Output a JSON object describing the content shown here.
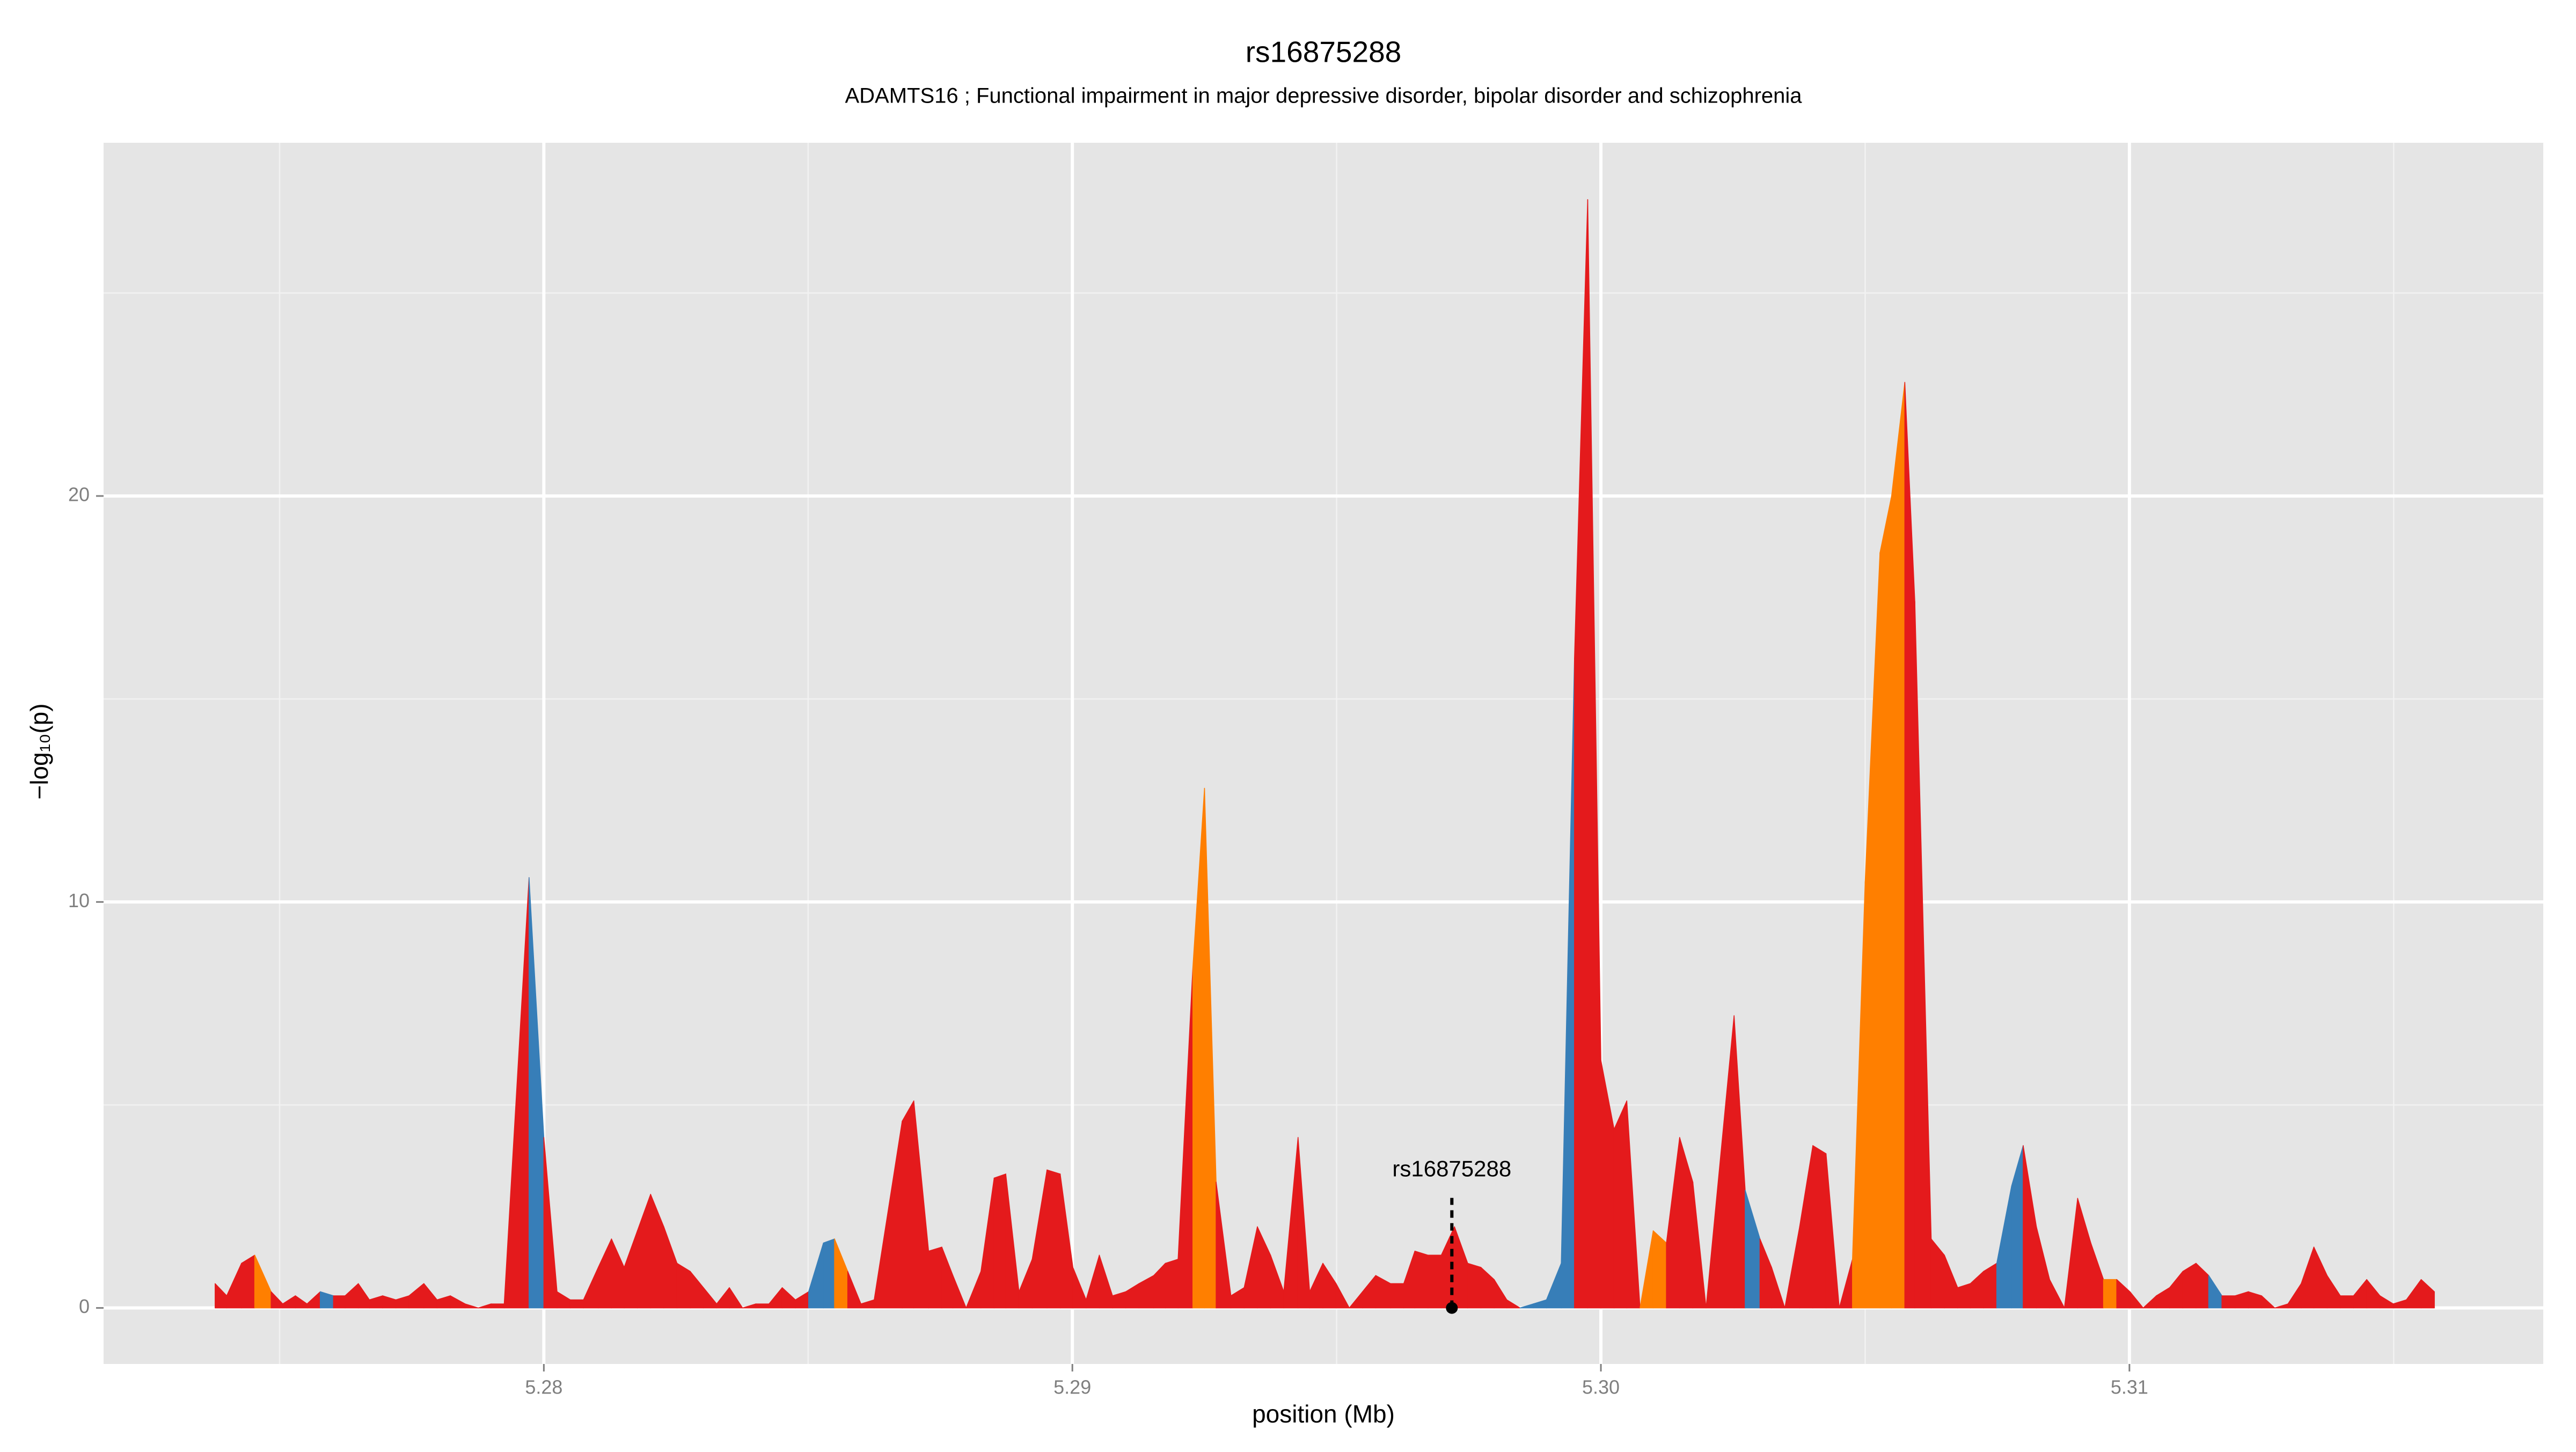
{
  "chart_data": {
    "type": "area",
    "title": "rs16875288",
    "subtitle": "ADAMTS16 ; Functional impairment in major depressive disorder, bipolar disorder and schizophrenia",
    "xlabel": "position (Mb)",
    "ylabel": "−log₁₀(p)",
    "xlim": [
      5.27167,
      5.31783
    ],
    "ylim": [
      -1.38,
      28.7
    ],
    "xticks": [
      5.28,
      5.29,
      {
        "value": 5.3,
        "label": "5.30"
      },
      5.31
    ],
    "yticks": [
      0,
      10,
      20
    ],
    "xminorticks": [
      5.275,
      5.285,
      5.295,
      5.305,
      5.315
    ],
    "yminorticks": [
      5,
      15,
      25
    ],
    "grid": true,
    "x": [
      5.27378,
      5.274,
      5.27428,
      5.27453,
      5.27484,
      5.27506,
      5.2753,
      5.27552,
      5.27577,
      5.27602,
      5.27624,
      5.27649,
      5.2767,
      5.27695,
      5.2772,
      5.27745,
      5.27773,
      5.27798,
      5.27823,
      5.27851,
      5.27876,
      5.279,
      5.27925,
      5.27972,
      5.28,
      5.28025,
      5.2805,
      5.28075,
      5.28103,
      5.28128,
      5.28152,
      5.28177,
      5.28202,
      5.28227,
      5.28252,
      5.28277,
      5.28302,
      5.28327,
      5.28351,
      5.28376,
      5.28401,
      5.28426,
      5.28451,
      5.28476,
      5.28501,
      5.28529,
      5.2855,
      5.28575,
      5.286,
      5.28625,
      5.28678,
      5.287,
      5.28728,
      5.28753,
      5.28774,
      5.28799,
      5.28827,
      5.28852,
      5.28874,
      5.28899,
      5.28924,
      5.28952,
      5.28977,
      5.29001,
      5.29026,
      5.29051,
      5.29076,
      5.29101,
      5.29126,
      5.29154,
      5.29176,
      5.292,
      5.29228,
      5.2925,
      5.29272,
      5.293,
      5.29325,
      5.2935,
      5.29375,
      5.294,
      5.29427,
      5.29449,
      5.29474,
      5.29499,
      5.29524,
      5.29549,
      5.29574,
      5.29602,
      5.29627,
      5.29648,
      5.29673,
      5.29698,
      5.29723,
      5.29748,
      5.29773,
      5.29798,
      5.29822,
      5.29847,
      5.29872,
      5.29897,
      5.29925,
      5.2995,
      5.29975,
      5.3,
      5.30025,
      5.30049,
      5.30074,
      5.30099,
      5.30124,
      5.30149,
      5.30174,
      5.30199,
      5.30252,
      5.30273,
      5.30301,
      5.30323,
      5.30348,
      5.30376,
      5.30401,
      5.30426,
      5.30451,
      5.30476,
      5.305,
      5.30528,
      5.3055,
      5.30575,
      5.30594,
      5.30625,
      5.3065,
      5.30675,
      5.30699,
      5.30724,
      5.30749,
      5.30777,
      5.30799,
      5.30824,
      5.30849,
      5.30877,
      5.30902,
      5.30927,
      5.30951,
      5.30976,
      5.31001,
      5.31026,
      5.31051,
      5.31076,
      5.31101,
      5.31126,
      5.3115,
      5.31175,
      5.312,
      5.31225,
      5.3125,
      5.31275,
      5.313,
      5.31325,
      5.31349,
      5.31374,
      5.31399,
      5.31424,
      5.31449,
      5.31474,
      5.31499,
      5.31524,
      5.31552,
      5.31577
    ],
    "series": [
      {
        "values": [
          0.6,
          0.3,
          1.1,
          1.3,
          0.4,
          0.1,
          0.3,
          0.1,
          0.4,
          0.3,
          0.3,
          0.6,
          0.2,
          0.3,
          0.2,
          0.3,
          0.6,
          0.2,
          0.3,
          0.1,
          0.0,
          0.1,
          0.1,
          10.6,
          4.2,
          0.4,
          0.2,
          0.2,
          1.0,
          1.7,
          1.0,
          1.9,
          2.8,
          2.0,
          1.1,
          0.9,
          0.5,
          0.1,
          0.5,
          0.0,
          0.1,
          0.1,
          0.5,
          0.2,
          0.4,
          1.6,
          1.7,
          0.9,
          0.1,
          0.2,
          4.6,
          5.1,
          1.4,
          1.5,
          0.8,
          0.0,
          0.9,
          3.2,
          3.3,
          0.4,
          1.2,
          3.4,
          3.3,
          1.0,
          0.2,
          1.3,
          0.3,
          0.4,
          0.6,
          0.8,
          1.1,
          1.2,
          8.4,
          12.8,
          3.1,
          0.3,
          0.5,
          2.0,
          1.3,
          0.4,
          4.2,
          0.4,
          1.1,
          0.6,
          0.0,
          0.4,
          0.8,
          0.6,
          0.6,
          1.4,
          1.3,
          1.3,
          2.0,
          1.1,
          1.0,
          0.7,
          0.2,
          0.0,
          0.1,
          0.2,
          1.1,
          16.0,
          27.3,
          6.1,
          4.4,
          5.1,
          0.0,
          1.9,
          1.6,
          4.2,
          3.1,
          0.0,
          7.2,
          2.9,
          1.7,
          1.0,
          0.0,
          2.0,
          4.0,
          3.8,
          0.0,
          1.2,
          10.5,
          18.6,
          20.0,
          22.8,
          17.4,
          1.7,
          1.3,
          0.5,
          0.6,
          0.9,
          1.1,
          3.0,
          4.0,
          2.0,
          0.7,
          0.0,
          2.7,
          1.6,
          0.7,
          0.7,
          0.4,
          0.0,
          0.3,
          0.5,
          0.9,
          1.1,
          0.8,
          0.3,
          0.3,
          0.4,
          0.3,
          0.0,
          0.1,
          0.6,
          1.5,
          0.8,
          0.3,
          0.3,
          0.7,
          0.3,
          0.1,
          0.2,
          0.7,
          0.4
        ],
        "colors": [
          "#e41a1c",
          "#e41a1c",
          "#e41a1c",
          "#e41a1c",
          "#ff7f00",
          "#e41a1c",
          "#e41a1c",
          "#e41a1c",
          "#e41a1c",
          "#377eb8",
          "#e41a1c",
          "#e41a1c",
          "#e41a1c",
          "#e41a1c",
          "#e41a1c",
          "#e41a1c",
          "#e41a1c",
          "#e41a1c",
          "#e41a1c",
          "#e41a1c",
          "#e41a1c",
          "#e41a1c",
          "#e41a1c",
          "#e41a1c",
          "#377eb8",
          "#e41a1c",
          "#e41a1c",
          "#e41a1c",
          "#e41a1c",
          "#e41a1c",
          "#e41a1c",
          "#e41a1c",
          "#e41a1c",
          "#e41a1c",
          "#e41a1c",
          "#e41a1c",
          "#e41a1c",
          "#e41a1c",
          "#e41a1c",
          "#e41a1c",
          "#e41a1c",
          "#e41a1c",
          "#e41a1c",
          "#e41a1c",
          "#e41a1c",
          "#377eb8",
          "#377eb8",
          "#ff7f00",
          "#e41a1c",
          "#e41a1c",
          "#e41a1c",
          "#e41a1c",
          "#e41a1c",
          "#e41a1c",
          "#e41a1c",
          "#e41a1c",
          "#e41a1c",
          "#e41a1c",
          "#e41a1c",
          "#e41a1c",
          "#e41a1c",
          "#e41a1c",
          "#e41a1c",
          "#e41a1c",
          "#e41a1c",
          "#e41a1c",
          "#e41a1c",
          "#e41a1c",
          "#e41a1c",
          "#e41a1c",
          "#e41a1c",
          "#e41a1c",
          "#e41a1c",
          "#ff7f00",
          "#ff7f00",
          "#e41a1c",
          "#e41a1c",
          "#e41a1c",
          "#e41a1c",
          "#e41a1c",
          "#e41a1c",
          "#e41a1c",
          "#e41a1c",
          "#e41a1c",
          "#e41a1c",
          "#e41a1c",
          "#e41a1c",
          "#e41a1c",
          "#e41a1c",
          "#e41a1c",
          "#e41a1c",
          "#e41a1c",
          "#e41a1c",
          "#e41a1c",
          "#e41a1c",
          "#e41a1c",
          "#e41a1c",
          "#e41a1c",
          "#377eb8",
          "#377eb8",
          "#377eb8",
          "#377eb8",
          "#e41a1c",
          "#e41a1c",
          "#e41a1c",
          "#e41a1c",
          "#e41a1c",
          "#ff7f00",
          "#ff7f00",
          "#e41a1c",
          "#e41a1c",
          "#e41a1c",
          "#e41a1c",
          "#e41a1c",
          "#377eb8",
          "#e41a1c",
          "#e41a1c",
          "#e41a1c",
          "#e41a1c",
          "#e41a1c",
          "#e41a1c",
          "#e41a1c",
          "#ff7f00",
          "#ff7f00",
          "#ff7f00",
          "#ff7f00",
          "#e41a1c",
          "#e41a1c",
          "#e41a1c",
          "#e41a1c",
          "#e41a1c",
          "#e41a1c",
          "#e41a1c",
          "#377eb8",
          "#377eb8",
          "#e41a1c",
          "#e41a1c",
          "#e41a1c",
          "#e41a1c",
          "#e41a1c",
          "#e41a1c",
          "#ff7f00",
          "#e41a1c",
          "#e41a1c",
          "#e41a1c",
          "#e41a1c",
          "#e41a1c",
          "#e41a1c",
          "#e41a1c",
          "#377eb8",
          "#e41a1c",
          "#e41a1c",
          "#e41a1c",
          "#e41a1c",
          "#e41a1c",
          "#e41a1c",
          "#e41a1c",
          "#e41a1c",
          "#e41a1c",
          "#e41a1c",
          "#e41a1c",
          "#e41a1c",
          "#e41a1c",
          "#e41a1c",
          "#e41a1c",
          "#e41a1c"
        ]
      }
    ],
    "annotation": {
      "text": "rs16875288",
      "x": 5.29718,
      "y": 0
    }
  }
}
